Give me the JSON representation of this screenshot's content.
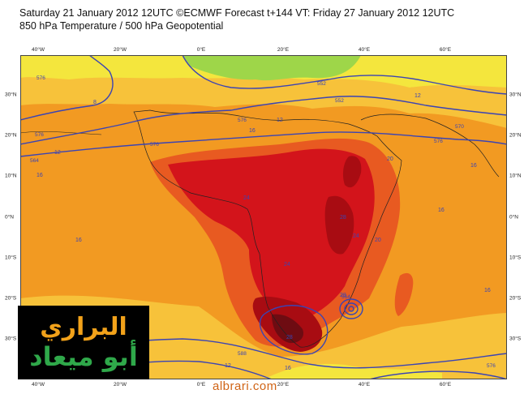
{
  "header": {
    "title_line1": "Saturday 21 January 2012 12UTC ©ECMWF Forecast t+144 VT: Friday 27 January 2012 12UTC",
    "title_line2": "850 hPa Temperature / 500 hPa Geopotential"
  },
  "axes": {
    "longitudes": [
      "40°W",
      "20°W",
      "0°E",
      "20°E",
      "40°E",
      "60°E"
    ],
    "latitudes": [
      "30°N",
      "20°N",
      "10°N",
      "0°N",
      "10°S",
      "20°S",
      "30°S"
    ]
  },
  "contour_labels": {
    "temperature": [
      "8",
      "12",
      "12",
      "16",
      "16",
      "16",
      "12",
      "16",
      "20",
      "20",
      "24",
      "28",
      "24",
      "24",
      "28",
      "28",
      "16",
      "16",
      "12",
      "16"
    ],
    "geopotential": [
      "576",
      "576",
      "564",
      "552",
      "552",
      "576",
      "576",
      "570",
      "576",
      "564",
      "588",
      "576"
    ]
  },
  "logo": {
    "line1": "البراري",
    "line2": "أبو ميعاد"
  },
  "watermark": {
    "site": "albrari.com"
  },
  "colors": {
    "orange": "#f29a22",
    "red_orange": "#e85a21",
    "red": "#d3141b",
    "dark_red": "#a80c12",
    "maroon": "#6e0c12",
    "light_orange": "#f7c23a",
    "yellow": "#f4e63d",
    "green": "#9ed649",
    "contour_blue": "#3b44b4"
  }
}
